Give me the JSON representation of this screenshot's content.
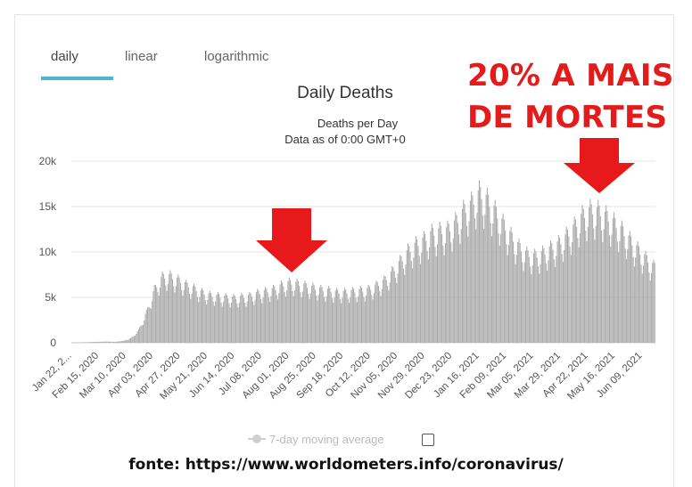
{
  "tabs": [
    {
      "label": "daily",
      "active": true
    },
    {
      "label": "linear",
      "active": false
    },
    {
      "label": "logarithmic",
      "active": false
    }
  ],
  "annotation": {
    "lines": [
      "20% A MAIS",
      "DE MORTES"
    ],
    "color": "#e41b1b"
  },
  "legend": {
    "label": "7-day moving average",
    "checked": false
  },
  "footer": "fonte: https://www.worldometers.info/coronavirus/",
  "colors": {
    "bar": "#a9a9a9",
    "accent": "#4cb8cf",
    "arrow": "#e8191b"
  },
  "chart_data": {
    "type": "bar",
    "title": "Daily Deaths",
    "subtitle_lines": [
      "Deaths per Day",
      "Data as of 0:00 GMT+0"
    ],
    "ylim": [
      0,
      20000
    ],
    "yticks": [
      {
        "value": 0,
        "label": "0"
      },
      {
        "value": 5000,
        "label": "5k"
      },
      {
        "value": 10000,
        "label": "10k"
      },
      {
        "value": 15000,
        "label": "15k"
      },
      {
        "value": 20000,
        "label": "20k"
      }
    ],
    "x_start": "2020-01-22",
    "x_end": "2021-06-20",
    "xtick_labels": [
      "Jan 22, 2...",
      "Feb 15, 2020",
      "Mar 10, 2020",
      "Apr 03, 2020",
      "Apr 27, 2020",
      "May 21, 2020",
      "Jun 14, 2020",
      "Jul 08, 2020",
      "Aug 01, 2020",
      "Aug 25, 2020",
      "Sep 18, 2020",
      "Oct 12, 2020",
      "Nov 05, 2020",
      "Nov 29, 2020",
      "Dec 23, 2020",
      "Jan 16, 2021",
      "Feb 09, 2021",
      "Mar 05, 2021",
      "Mar 29, 2021",
      "Apr 22, 2021",
      "May 16, 2021",
      "Jun 09, 2021"
    ],
    "weekly_trend": {
      "week_starts": [
        "2020-01-22",
        "2020-01-29",
        "2020-02-05",
        "2020-02-12",
        "2020-02-19",
        "2020-02-26",
        "2020-03-04",
        "2020-03-11",
        "2020-03-18",
        "2020-03-25",
        "2020-04-01",
        "2020-04-08",
        "2020-04-15",
        "2020-04-22",
        "2020-04-29",
        "2020-05-06",
        "2020-05-13",
        "2020-05-20",
        "2020-05-27",
        "2020-06-03",
        "2020-06-10",
        "2020-06-17",
        "2020-06-24",
        "2020-07-01",
        "2020-07-08",
        "2020-07-15",
        "2020-07-22",
        "2020-07-29",
        "2020-08-05",
        "2020-08-12",
        "2020-08-19",
        "2020-08-26",
        "2020-09-02",
        "2020-09-09",
        "2020-09-16",
        "2020-09-23",
        "2020-09-30",
        "2020-10-07",
        "2020-10-14",
        "2020-10-21",
        "2020-10-28",
        "2020-11-04",
        "2020-11-11",
        "2020-11-18",
        "2020-11-25",
        "2020-12-02",
        "2020-12-09",
        "2020-12-16",
        "2020-12-23",
        "2020-12-30",
        "2021-01-06",
        "2021-01-13",
        "2021-01-20",
        "2021-01-27",
        "2021-02-03",
        "2021-02-10",
        "2021-02-17",
        "2021-02-24",
        "2021-03-03",
        "2021-03-10",
        "2021-03-17",
        "2021-03-24",
        "2021-03-31",
        "2021-04-07",
        "2021-04-14",
        "2021-04-21",
        "2021-04-28",
        "2021-05-05",
        "2021-05-12",
        "2021-05-19",
        "2021-05-26",
        "2021-06-02",
        "2021-06-09",
        "2021-06-16"
      ],
      "deaths_per_day": [
        30,
        50,
        80,
        110,
        130,
        100,
        200,
        450,
        1300,
        3200,
        5600,
        6900,
        7000,
        6600,
        6100,
        5700,
        5300,
        5000,
        4900,
        4800,
        4700,
        4800,
        4900,
        5200,
        5400,
        5600,
        6000,
        6300,
        6200,
        6000,
        5800,
        5600,
        5500,
        5300,
        5300,
        5400,
        5500,
        5600,
        6000,
        6500,
        7400,
        8500,
        9600,
        10300,
        10800,
        11500,
        11700,
        11800,
        12600,
        13800,
        14600,
        15700,
        15000,
        13800,
        12500,
        11200,
        10100,
        9300,
        9100,
        9400,
        9900,
        10400,
        11200,
        12200,
        13300,
        13900,
        13800,
        13300,
        12600,
        11800,
        10800,
        9800,
        8900,
        8000
      ]
    }
  }
}
